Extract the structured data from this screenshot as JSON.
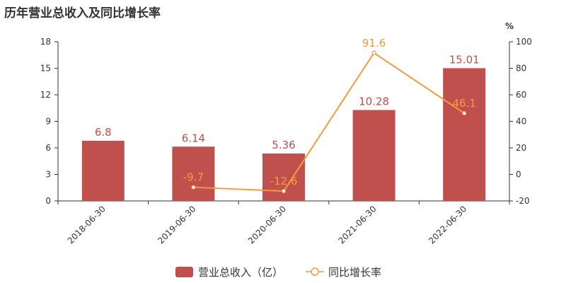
{
  "title": "历年营业总收入及同比增长率",
  "colors": {
    "bar": "#c0504d",
    "line": "#f79a3e",
    "axis": "#333333"
  },
  "chart_data": {
    "type": "bar",
    "categories": [
      "2018-06-30",
      "2019-06-30",
      "2020-06-30",
      "2021-06-30",
      "2022-06-30"
    ],
    "series": [
      {
        "name": "营业总收入（亿）",
        "type": "bar",
        "axis": "left",
        "values": [
          6.8,
          6.14,
          5.36,
          10.28,
          15.01
        ],
        "labels": [
          "6.8",
          "6.14",
          "5.36",
          "10.28",
          "15.01"
        ]
      },
      {
        "name": "同比增长率",
        "type": "line",
        "axis": "right",
        "values": [
          null,
          -9.7,
          -12.6,
          91.6,
          46.1
        ],
        "labels": [
          "",
          "-9.7",
          "-12.6",
          "91.6",
          "46.1"
        ]
      }
    ],
    "y_left": {
      "min": 0,
      "max": 18,
      "ticks": [
        "0",
        "3",
        "6",
        "9",
        "12",
        "15",
        "18"
      ]
    },
    "y_right": {
      "min": -20,
      "max": 100,
      "unit": "%",
      "ticks": [
        "-20",
        "0",
        "20",
        "40",
        "60",
        "80",
        "100"
      ]
    },
    "grid": false,
    "legend": "bottom-center"
  }
}
